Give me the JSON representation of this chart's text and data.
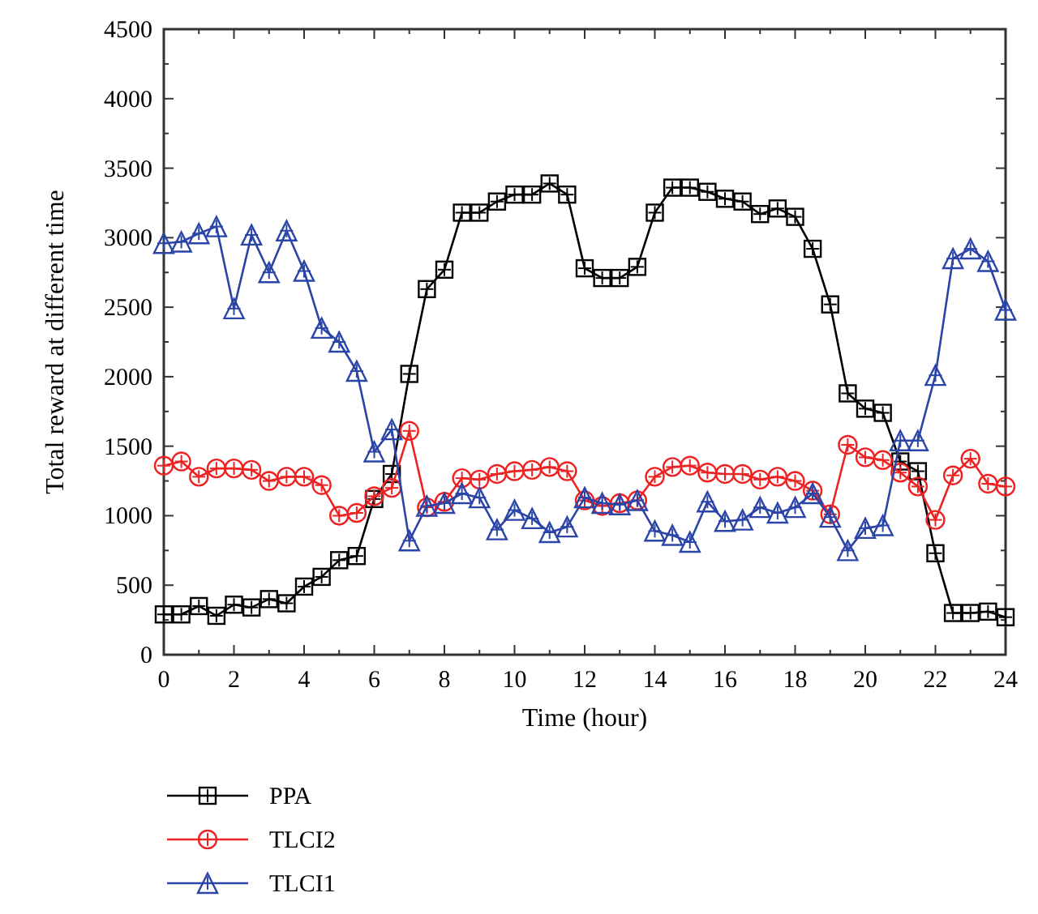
{
  "chart_data": {
    "type": "line",
    "xlabel": "Time (hour)",
    "ylabel": "Total reward at different time",
    "legend": "bottom",
    "grid": false,
    "xlim": [
      0,
      24
    ],
    "xticks": [
      0,
      2,
      4,
      6,
      8,
      10,
      12,
      14,
      16,
      18,
      20,
      22,
      24
    ],
    "ylim": [
      0,
      4500
    ],
    "yticks": [
      0,
      500,
      1000,
      1500,
      2000,
      2500,
      3000,
      3500,
      4000,
      4500
    ],
    "x": [
      0,
      0.5,
      1,
      1.5,
      2,
      2.5,
      3,
      3.5,
      4,
      4.5,
      5,
      5.5,
      6,
      6.5,
      7,
      7.5,
      8,
      8.5,
      9,
      9.5,
      10,
      10.5,
      11,
      11.5,
      12,
      12.5,
      13,
      13.5,
      14,
      14.5,
      15,
      15.5,
      16,
      16.5,
      17,
      17.5,
      18,
      18.5,
      19,
      19.5,
      20,
      20.5,
      21,
      21.5,
      22,
      22.5,
      23,
      23.5,
      24
    ],
    "series": [
      {
        "name": "PPA",
        "color": "#000000",
        "marker": "square",
        "values": [
          290,
          290,
          350,
          280,
          360,
          340,
          400,
          370,
          490,
          560,
          680,
          710,
          1120,
          1300,
          2020,
          2630,
          2770,
          3180,
          3180,
          3260,
          3310,
          3310,
          3390,
          3310,
          2780,
          2710,
          2710,
          2790,
          3180,
          3360,
          3360,
          3330,
          3280,
          3260,
          3170,
          3210,
          3150,
          2920,
          2520,
          1880,
          1770,
          1740,
          1390,
          1320,
          730,
          300,
          300,
          310,
          270
        ]
      },
      {
        "name": "TLCI2",
        "color": "#ee2222",
        "marker": "circle",
        "values": [
          1360,
          1390,
          1280,
          1340,
          1340,
          1330,
          1250,
          1280,
          1280,
          1220,
          1000,
          1020,
          1140,
          1200,
          1610,
          1060,
          1100,
          1270,
          1260,
          1300,
          1320,
          1330,
          1350,
          1320,
          1110,
          1070,
          1090,
          1110,
          1280,
          1350,
          1360,
          1310,
          1300,
          1300,
          1260,
          1280,
          1250,
          1180,
          1010,
          1510,
          1420,
          1400,
          1310,
          1210,
          970,
          1290,
          1410,
          1230,
          1210
        ]
      },
      {
        "name": "TLCI1",
        "color": "#2a44a8",
        "marker": "triangle",
        "values": [
          2960,
          2970,
          3030,
          3080,
          2490,
          3020,
          2750,
          3050,
          2760,
          2350,
          2250,
          2040,
          1460,
          1620,
          820,
          1070,
          1090,
          1160,
          1130,
          900,
          1040,
          980,
          880,
          920,
          1130,
          1090,
          1080,
          1110,
          890,
          860,
          810,
          1100,
          960,
          970,
          1060,
          1020,
          1060,
          1160,
          990,
          750,
          910,
          930,
          1540,
          1540,
          2010,
          2850,
          2920,
          2830,
          2480
        ]
      }
    ]
  }
}
